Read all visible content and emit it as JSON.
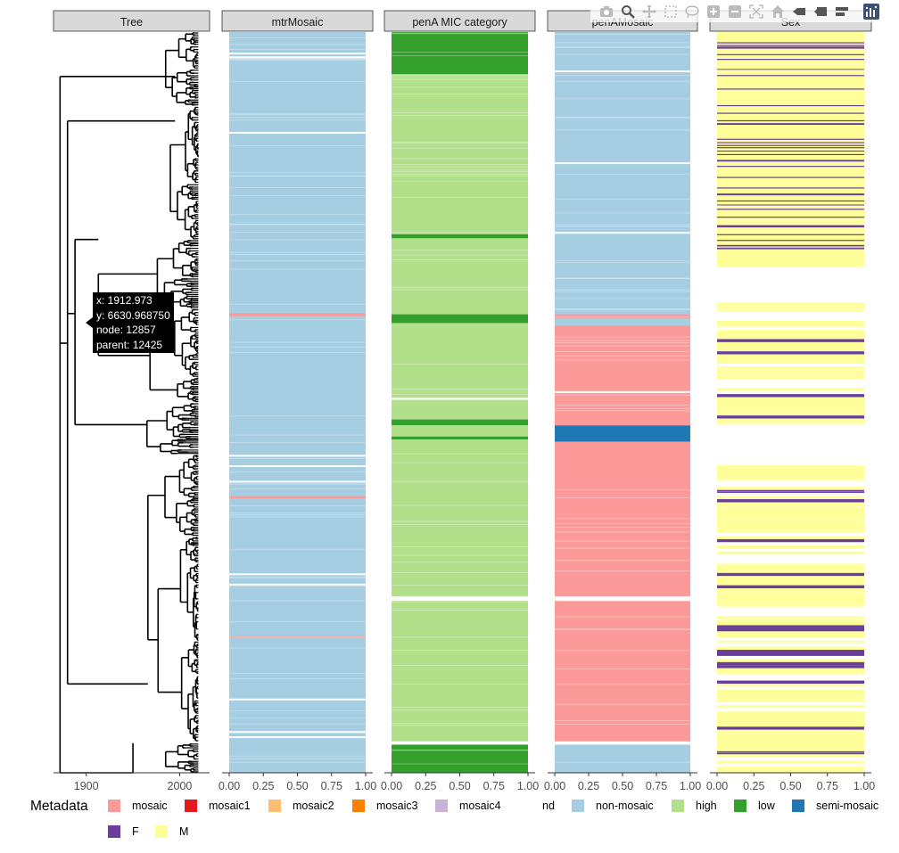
{
  "facets": [
    {
      "key": "tree",
      "label": "Tree"
    },
    {
      "key": "mtr",
      "label": "mtrMosaic"
    },
    {
      "key": "penaMic",
      "label": "penA MIC category"
    },
    {
      "key": "penaMosaic",
      "label": "penAMosaic"
    },
    {
      "key": "sex",
      "label": "Sex"
    }
  ],
  "axes": {
    "tree_x_ticks": [
      "1900",
      "2000"
    ],
    "tree_x_values": [
      1900,
      2000
    ],
    "tree_x_range": [
      1865,
      2032
    ],
    "metadata_ticks": [
      "0.00",
      "0.25",
      "0.50",
      "0.75",
      "1.00"
    ],
    "metadata_values": [
      0,
      0.25,
      0.5,
      0.75,
      1.0
    ]
  },
  "tooltip": {
    "x": "x: 1912.973",
    "y": "y: 6630.968750",
    "node": "node: 12857",
    "parent": "parent: 12425"
  },
  "legend": {
    "title": "Metadata",
    "items": [
      {
        "label": "mosaic",
        "color": "#fb9a99"
      },
      {
        "label": "mosaic1",
        "color": "#e31a1c"
      },
      {
        "label": "mosaic2",
        "color": "#fdbf6f"
      },
      {
        "label": "mosaic3",
        "color": "#ff7f00"
      },
      {
        "label": "mosaic4",
        "color": "#cab2d6"
      },
      {
        "label": "nd",
        "color": "#ffffff"
      },
      {
        "label": "non-mosaic",
        "color": "#a6cee3"
      },
      {
        "label": "high",
        "color": "#b2df8a"
      },
      {
        "label": "low",
        "color": "#33a02c"
      },
      {
        "label": "semi-mosaic",
        "color": "#1f78b4"
      },
      {
        "label": "F",
        "color": "#6a3d9a"
      },
      {
        "label": "M",
        "color": "#ffff99"
      }
    ]
  },
  "chart_data": [
    {
      "type": "tree",
      "facet": "Tree",
      "xlim": [
        1865,
        2032
      ],
      "x_ticks": [
        1900,
        2000
      ],
      "note_root_time": 1912.973
    },
    {
      "type": "heatmap",
      "facet": "mtrMosaic",
      "xlim": [
        0,
        1
      ],
      "bands": [
        {
          "from": 0.0,
          "to": 1.0,
          "value": "non-mosaic"
        },
        {
          "from": 0.3795,
          "to": 0.3835,
          "value": "mosaic"
        },
        {
          "from": 0.6265,
          "to": 0.6295,
          "value": "mosaic"
        },
        {
          "from": 0.8155,
          "to": 0.8175,
          "value": "mosaic"
        }
      ],
      "gaps": [
        0.029,
        0.034,
        0.136,
        0.572,
        0.586,
        0.607,
        0.732,
        0.746,
        0.901,
        0.945,
        0.952
      ]
    },
    {
      "type": "heatmap",
      "facet": "penA MIC category",
      "xlim": [
        0,
        1
      ],
      "bands": [
        {
          "from": 0.0,
          "to": 0.057,
          "value": "low"
        },
        {
          "from": 0.057,
          "to": 0.273,
          "value": "high"
        },
        {
          "from": 0.273,
          "to": 0.279,
          "value": "low"
        },
        {
          "from": 0.279,
          "to": 0.381,
          "value": "high"
        },
        {
          "from": 0.381,
          "to": 0.393,
          "value": "low"
        },
        {
          "from": 0.393,
          "to": 0.498,
          "value": "high"
        },
        {
          "from": 0.498,
          "to": 0.523,
          "value": "high"
        },
        {
          "from": 0.523,
          "to": 0.531,
          "value": "low"
        },
        {
          "from": 0.531,
          "to": 0.546,
          "value": "high"
        },
        {
          "from": 0.546,
          "to": 0.55,
          "value": "low"
        },
        {
          "from": 0.55,
          "to": 0.762,
          "value": "high"
        },
        {
          "from": 0.768,
          "to": 0.958,
          "value": "high"
        },
        {
          "from": 0.962,
          "to": 1.0,
          "value": "low"
        }
      ],
      "gaps": [
        0.495,
        0.763,
        0.959
      ]
    },
    {
      "type": "heatmap",
      "facet": "penAMosaic",
      "xlim": [
        0,
        1
      ],
      "bands": [
        {
          "from": 0.0,
          "to": 0.396,
          "value": "non-mosaic"
        },
        {
          "from": 0.381,
          "to": 0.386,
          "value": "mosaic"
        },
        {
          "from": 0.396,
          "to": 0.485,
          "value": "mosaic"
        },
        {
          "from": 0.487,
          "to": 0.531,
          "value": "mosaic"
        },
        {
          "from": 0.531,
          "to": 0.553,
          "value": "semi-mosaic"
        },
        {
          "from": 0.553,
          "to": 0.762,
          "value": "mosaic"
        },
        {
          "from": 0.768,
          "to": 0.958,
          "value": "mosaic"
        },
        {
          "from": 0.962,
          "to": 1.0,
          "value": "non-mosaic"
        }
      ],
      "gaps": [
        0.053,
        0.177,
        0.271,
        0.486,
        0.763,
        0.959
      ]
    },
    {
      "type": "heatmap",
      "facet": "Sex",
      "xlim": [
        0,
        1
      ],
      "bands": [
        {
          "from": 0.0,
          "to": 0.317,
          "value": "M"
        },
        {
          "from": 0.317,
          "to": 0.365,
          "value": "nd"
        },
        {
          "from": 0.365,
          "to": 0.53,
          "value": "M/F/nd mixed"
        },
        {
          "from": 0.53,
          "to": 0.585,
          "value": "nd"
        },
        {
          "from": 0.585,
          "to": 1.0,
          "value": "M/F/nd mixed"
        }
      ]
    }
  ],
  "modebar": {
    "buttons": [
      "camera-icon",
      "zoom-icon",
      "pan-icon",
      "box-select-icon",
      "lasso-icon",
      "zoom-in-icon",
      "zoom-out-icon",
      "autoscale-icon",
      "home-icon",
      "spike-icon",
      "hover-closest-icon",
      "hover-compare-icon",
      "plotly-logo-icon"
    ]
  }
}
